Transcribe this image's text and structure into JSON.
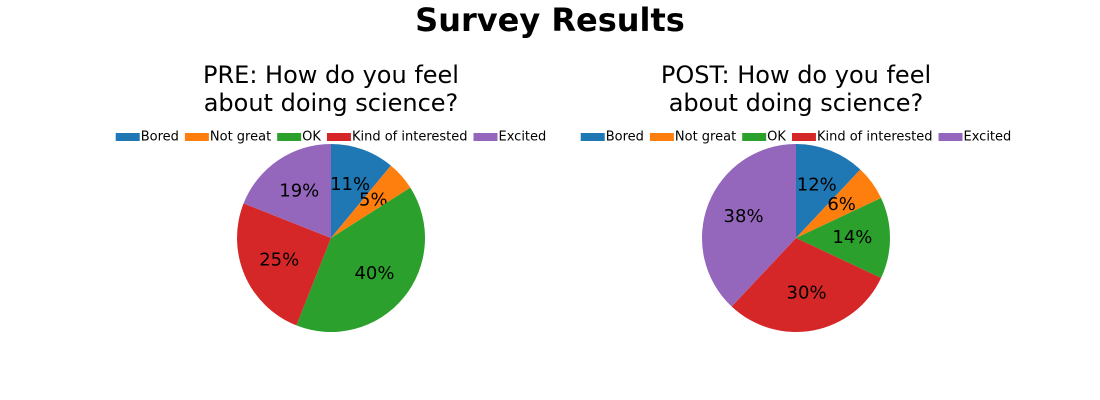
{
  "title": "Survey Results",
  "chart_data": [
    {
      "type": "pie",
      "title": [
        "PRE: How do you feel",
        "about doing science?"
      ],
      "categories": [
        "Bored",
        "Not great",
        "OK",
        "Kind of interested",
        "Excited"
      ],
      "values": [
        11,
        5,
        40,
        25,
        19
      ],
      "value_labels": [
        "11%",
        "5%",
        "40%",
        "25%",
        "19%"
      ],
      "colors": [
        "#1f77b4",
        "#ff7f0e",
        "#2ca02c",
        "#d62728",
        "#9467bd"
      ]
    },
    {
      "type": "pie",
      "title": [
        "POST: How do you feel",
        "about doing science?"
      ],
      "categories": [
        "Bored",
        "Not great",
        "OK",
        "Kind of interested",
        "Excited"
      ],
      "values": [
        12,
        6,
        14,
        30,
        38
      ],
      "value_labels": [
        "12%",
        "6%",
        "14%",
        "30%",
        "38%"
      ],
      "colors": [
        "#1f77b4",
        "#ff7f0e",
        "#2ca02c",
        "#d62728",
        "#9467bd"
      ]
    }
  ]
}
